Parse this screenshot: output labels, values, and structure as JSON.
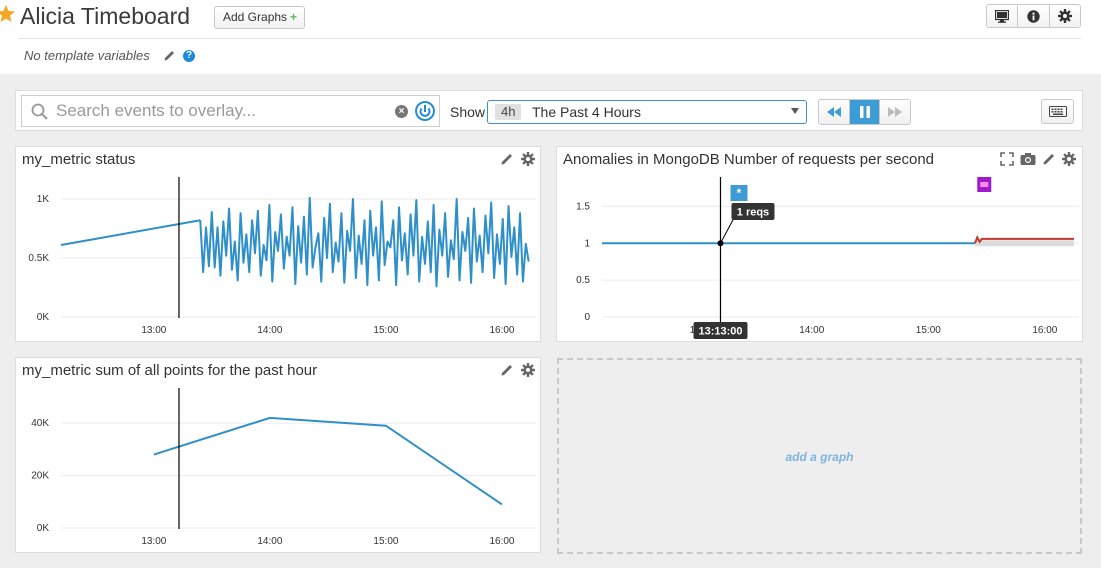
{
  "header": {
    "title": "Alicia Timeboard",
    "add_graphs_label": "Add Graphs",
    "add_graphs_plus": "+",
    "template_vars": "No template variables",
    "help": "?"
  },
  "toolbar": {
    "search_placeholder": "Search events to overlay...",
    "clear": "×",
    "show_label": "Show",
    "timeframe_badge": "4h",
    "timeframe_label": "The Past 4 Hours"
  },
  "widgets": {
    "w1_title": "my_metric status",
    "w2_title": "Anomalies in MongoDB Number of requests per second",
    "w3_title": "my_metric sum of all points for the past hour",
    "add_graph_label": "add a graph",
    "w2_event_marker": "*",
    "w2_tooltip_value": "1 reqs",
    "w2_cursor_time": "13:13:00"
  },
  "colors": {
    "series_blue": "#2e8fc9",
    "anomaly_red": "#c0392b",
    "accent": "#3d9bd6"
  },
  "chart_data": [
    {
      "type": "line",
      "title": "my_metric status",
      "x_ticks": [
        "13:00",
        "14:00",
        "15:00",
        "16:00"
      ],
      "y_ticks": [
        "0K",
        "0.5K",
        "1K"
      ],
      "ylim": [
        0,
        1000
      ],
      "x_range_hours": [
        12.2,
        16.25
      ],
      "cursor_time": "13:13",
      "series": [
        {
          "points_early": [
            [
              12.2,
              610
            ],
            [
              13.4,
              820
            ]
          ],
          "values_dense": [
            820,
            380,
            760,
            430,
            890,
            420,
            760,
            350,
            810,
            520,
            920,
            400,
            640,
            310,
            880,
            460,
            700,
            380,
            820,
            540,
            900,
            350,
            610,
            480,
            950,
            300,
            720,
            560,
            870,
            410,
            680,
            520,
            930,
            280,
            770,
            460,
            850,
            360,
            1010,
            420,
            590,
            710,
            300,
            840,
            500,
            960,
            380,
            630,
            470,
            880,
            290,
            730,
            560,
            1000,
            330,
            690,
            450,
            820,
            270,
            900,
            520,
            760,
            310,
            980,
            440,
            640,
            590,
            820,
            270,
            930,
            480,
            710,
            360,
            870,
            520,
            990,
            300,
            680,
            450,
            810,
            380,
            950,
            260,
            740,
            520,
            880,
            340,
            650,
            490,
            1000,
            310,
            720,
            560,
            840,
            290,
            920,
            470,
            690,
            380,
            860,
            540,
            970,
            330,
            700,
            450,
            830,
            280,
            940,
            510,
            760,
            360,
            880,
            300,
            620,
            470
          ]
        }
      ]
    },
    {
      "type": "line",
      "title": "Anomalies in MongoDB Number of requests per second",
      "x_ticks": [
        "13",
        "14:00",
        "15:00",
        "16:00"
      ],
      "y_ticks": [
        "0",
        "0.5",
        "1",
        "1.5"
      ],
      "ylim": [
        0,
        1.6
      ],
      "x_range_hours": [
        12.2,
        16.25
      ],
      "cursor_time": "13:13:00",
      "series": [
        {
          "name": "",
          "values": [
            [
              12.2,
              1.0
            ],
            [
              15.4,
              1.0
            ]
          ]
        },
        {
          "name": "anomaly",
          "values": [
            [
              15.4,
              1.0
            ],
            [
              15.42,
              1.08
            ],
            [
              15.44,
              1.02
            ],
            [
              15.46,
              1.06
            ],
            [
              16.25,
              1.06
            ]
          ]
        }
      ]
    },
    {
      "type": "line",
      "title": "my_metric sum of all points for the past hour",
      "x_ticks": [
        "13:00",
        "14:00",
        "15:00",
        "16:00"
      ],
      "y_ticks": [
        "0K",
        "20K",
        "40K"
      ],
      "ylim": [
        0,
        45000
      ],
      "x_range_hours": [
        12.2,
        16.25
      ],
      "cursor_time": "13:13",
      "series": [
        {
          "name": "",
          "values": [
            [
              13.0,
              28000
            ],
            [
              14.0,
              42000
            ],
            [
              15.0,
              39000
            ],
            [
              16.0,
              9000
            ]
          ]
        }
      ]
    }
  ]
}
